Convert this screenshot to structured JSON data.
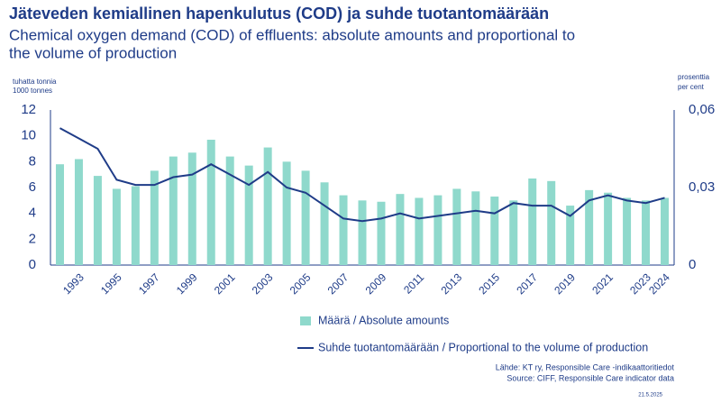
{
  "chart_data": {
    "type": "bar_line",
    "title": "Jäteveden kemiallinen hapenkulutus (COD) ja suhde tuotantomäärään",
    "subtitle": [
      "Chemical oxygen demand (COD) of effluents: absolute amounts and proportional to",
      "the volume of production"
    ],
    "y_label": [
      "tuhatta tonnia",
      "1000 tonnes"
    ],
    "y2_label": [
      "prosenttia",
      "per cent"
    ],
    "categories": [
      null,
      "1993",
      null,
      "1995",
      null,
      "1997",
      null,
      "1999",
      null,
      "2001",
      null,
      "2003",
      null,
      "2005",
      null,
      "2007",
      null,
      "2009",
      null,
      "2011",
      null,
      "2013",
      null,
      "2015",
      null,
      "2017",
      null,
      "2019",
      null,
      "2021",
      null,
      "2023",
      "2024"
    ],
    "series": [
      {
        "name": "Määrä / Absolute amounts",
        "color": "#8fd9cc",
        "type": "bar",
        "values": [
          7.8,
          8.2,
          6.9,
          5.9,
          6.1,
          7.3,
          8.4,
          8.7,
          9.7,
          8.4,
          7.7,
          9.1,
          8.0,
          7.3,
          6.4,
          5.4,
          5.0,
          4.9,
          5.5,
          5.2,
          5.4,
          5.9,
          5.7,
          5.3,
          5.0,
          6.7,
          6.5,
          4.6,
          5.8,
          5.6,
          5.2,
          5.0,
          5.2
        ]
      },
      {
        "name": "Suhde tuotantomäärään / Proportional to the volume of production",
        "color": "#1f3c88",
        "type": "line",
        "axis": "y2",
        "values": [
          0.053,
          0.049,
          0.045,
          0.033,
          0.031,
          0.031,
          0.034,
          0.035,
          0.039,
          0.035,
          0.031,
          0.036,
          0.03,
          0.028,
          0.023,
          0.018,
          0.017,
          0.018,
          0.02,
          0.018,
          0.019,
          0.02,
          0.021,
          0.02,
          0.024,
          0.023,
          0.023,
          0.019,
          0.025,
          0.027,
          0.025,
          0.024,
          0.026
        ]
      }
    ],
    "ylim": [
      0,
      12
    ],
    "yticks": [
      0,
      2,
      4,
      6,
      8,
      10,
      12
    ],
    "y2lim": [
      0,
      0.06
    ],
    "y2ticks": [
      0,
      {
        "value": 0.03,
        "label": "0,03"
      },
      {
        "value": 0.06,
        "label": "0,06"
      }
    ],
    "source": [
      "Lähde: KT ry, Responsible Care -indikaattoritiedot",
      "Source: CIFF, Responsible Care indicator data"
    ],
    "date": "21.5.2025"
  }
}
